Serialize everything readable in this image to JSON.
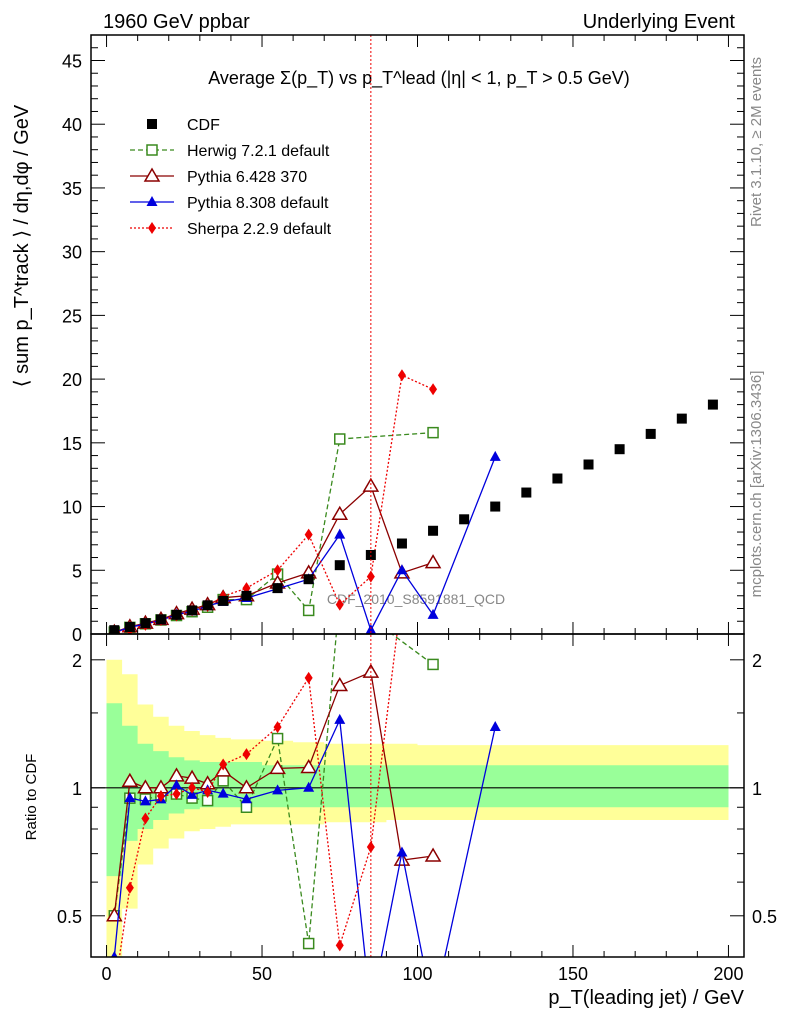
{
  "header": {
    "left": "1960 GeV ppbar",
    "right": "Underlying Event"
  },
  "side": {
    "rivet": "Rivet 3.1.10, ≥ 2M events",
    "mcplots": "mcplots.cern.ch [arXiv:1306.3436]"
  },
  "watermark": "CDF_2010_S8591881_QCD",
  "chart_data": [
    {
      "type": "scatter",
      "title": "Average Σ(p_T) vs p_T^lead (|η| < 1, p_T > 0.5 GeV)",
      "ylabel": "⟨ sum p_T^track ⟩ / dη,dφ / GeV",
      "xlabel": "",
      "xlim": [
        -5,
        205
      ],
      "ylim": [
        0,
        47
      ],
      "xticks": [
        0,
        50,
        100,
        150,
        200
      ],
      "yticks": [
        0,
        5,
        10,
        15,
        20,
        25,
        30,
        35,
        40,
        45
      ],
      "legend_position": "top-left",
      "series": [
        {
          "name": "CDF",
          "color": "#000000",
          "marker": "filled-square",
          "x": [
            2.5,
            7.5,
            12.5,
            17.5,
            22.5,
            27.5,
            32.5,
            37.5,
            45,
            55,
            65,
            75,
            85,
            95,
            105,
            115,
            125,
            135,
            145,
            155,
            165,
            175,
            185,
            195
          ],
          "y": [
            0.3,
            0.55,
            0.85,
            1.15,
            1.5,
            1.85,
            2.25,
            2.6,
            3.0,
            3.6,
            4.3,
            5.4,
            6.2,
            7.1,
            8.1,
            9.0,
            10.0,
            11.1,
            12.2,
            13.3,
            14.5,
            15.7,
            16.9,
            18.0
          ]
        },
        {
          "name": "Herwig 7.2.1 default",
          "color": "#3a8a1e",
          "marker": "open-square",
          "line": "dashed",
          "x": [
            2.5,
            7.5,
            12.5,
            17.5,
            22.5,
            27.5,
            32.5,
            37.5,
            45,
            55,
            65,
            75,
            105
          ],
          "y": [
            0.15,
            0.52,
            0.8,
            1.1,
            1.45,
            1.75,
            2.1,
            2.7,
            2.7,
            4.7,
            1.85,
            15.3,
            15.8
          ]
        },
        {
          "name": "Pythia 6.428 370",
          "color": "#8b0000",
          "marker": "open-triangle",
          "line": "solid",
          "x": [
            2.5,
            7.5,
            12.5,
            17.5,
            22.5,
            27.5,
            32.5,
            37.5,
            45,
            55,
            65,
            75,
            85,
            95,
            105
          ],
          "y": [
            0.15,
            0.57,
            0.85,
            1.15,
            1.6,
            1.95,
            2.3,
            2.85,
            3.0,
            4.0,
            4.8,
            9.4,
            11.6,
            4.8,
            5.6
          ]
        },
        {
          "name": "Pythia 8.308 default",
          "color": "#0000dd",
          "marker": "filled-triangle",
          "line": "solid",
          "x": [
            2.5,
            7.5,
            12.5,
            17.5,
            22.5,
            27.5,
            32.5,
            37.5,
            45,
            55,
            65,
            75,
            85,
            95,
            105,
            125
          ],
          "y": [
            0.12,
            0.52,
            0.79,
            1.08,
            1.52,
            1.78,
            2.22,
            2.52,
            2.82,
            3.55,
            4.3,
            7.8,
            0.3,
            5.0,
            1.5,
            13.9
          ]
        },
        {
          "name": "Sherpa 2.2.9 default",
          "color": "#ee0000",
          "marker": "filled-diamond",
          "line": "dotted",
          "x": [
            2.5,
            7.5,
            12.5,
            17.5,
            22.5,
            27.5,
            32.5,
            37.5,
            45,
            55,
            65,
            75,
            85,
            95,
            105
          ],
          "y": [
            0.1,
            0.32,
            0.72,
            1.1,
            1.45,
            1.85,
            2.2,
            2.95,
            3.6,
            5.0,
            7.8,
            2.3,
            4.5,
            20.3,
            19.2
          ]
        }
      ]
    },
    {
      "type": "line",
      "title": "",
      "ylabel": "Ratio to CDF",
      "xlabel": "p_T(leading jet) / GeV",
      "xlim": [
        -5,
        205
      ],
      "ylim": [
        0.4,
        2.3
      ],
      "scale": "log",
      "yticks": [
        0.5,
        1,
        2
      ],
      "band_inner": {
        "x": [
          0,
          5,
          10,
          15,
          20,
          25,
          30,
          35,
          40,
          50,
          60,
          70,
          80,
          90,
          100,
          110,
          200
        ],
        "lo": [
          0.62,
          0.75,
          0.8,
          0.84,
          0.87,
          0.89,
          0.9,
          0.9,
          0.9,
          0.9,
          0.9,
          0.9,
          0.9,
          0.9,
          0.9,
          0.9,
          0.9
        ],
        "hi": [
          1.58,
          1.4,
          1.27,
          1.22,
          1.18,
          1.16,
          1.15,
          1.15,
          1.15,
          1.13,
          1.13,
          1.13,
          1.13,
          1.13,
          1.13,
          1.13,
          1.13
        ]
      },
      "band_outer": {
        "x": [
          0,
          5,
          10,
          15,
          20,
          25,
          30,
          35,
          40,
          50,
          60,
          70,
          80,
          90,
          100,
          110,
          200
        ],
        "lo": [
          0.38,
          0.52,
          0.66,
          0.72,
          0.76,
          0.79,
          0.8,
          0.81,
          0.82,
          0.82,
          0.82,
          0.83,
          0.83,
          0.84,
          0.84,
          0.84,
          0.84
        ],
        "hi": [
          2.0,
          1.85,
          1.57,
          1.47,
          1.4,
          1.36,
          1.33,
          1.31,
          1.3,
          1.29,
          1.28,
          1.27,
          1.27,
          1.27,
          1.26,
          1.26,
          1.26
        ]
      }
    }
  ]
}
